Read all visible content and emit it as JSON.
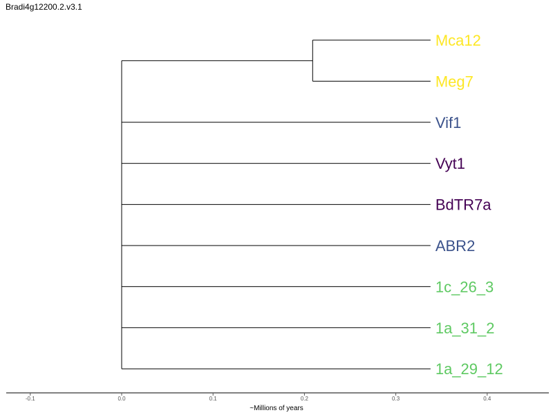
{
  "title": "Bradi4g12200.2.v3.1",
  "colors": {
    "yellow": "#fde725",
    "blue": "#3b528b",
    "purple": "#440154",
    "green": "#5ec962",
    "line": "#000000"
  },
  "chart_data": {
    "type": "tree",
    "xlabel": "~Millions of years",
    "xlim": [
      -0.125,
      0.465
    ],
    "xticks": [
      "-0.1",
      "0.0",
      "0.1",
      "0.2",
      "0.3",
      "0.4"
    ],
    "xtick_values": [
      -0.1,
      0.0,
      0.1,
      0.2,
      0.3,
      0.4
    ],
    "tip_x": 0.338,
    "root_x": 0.0,
    "tips": [
      {
        "label": "Mca12",
        "color": "#fde725",
        "parent": "clade1"
      },
      {
        "label": "Meg7",
        "color": "#fde725",
        "parent": "clade1"
      },
      {
        "label": "Vif1",
        "color": "#3b528b",
        "parent": "root"
      },
      {
        "label": "Vyt1",
        "color": "#440154",
        "parent": "root"
      },
      {
        "label": "BdTR7a",
        "color": "#440154",
        "parent": "root"
      },
      {
        "label": "ABR2",
        "color": "#3b528b",
        "parent": "root"
      },
      {
        "label": "1c_26_3",
        "color": "#5ec962",
        "parent": "root"
      },
      {
        "label": "1a_31_2",
        "color": "#5ec962",
        "parent": "root"
      },
      {
        "label": "1a_29_12",
        "color": "#5ec962",
        "parent": "root"
      }
    ],
    "internal_nodes": [
      {
        "id": "clade1",
        "x": 0.209,
        "children": [
          "Mca12",
          "Meg7"
        ]
      }
    ]
  }
}
